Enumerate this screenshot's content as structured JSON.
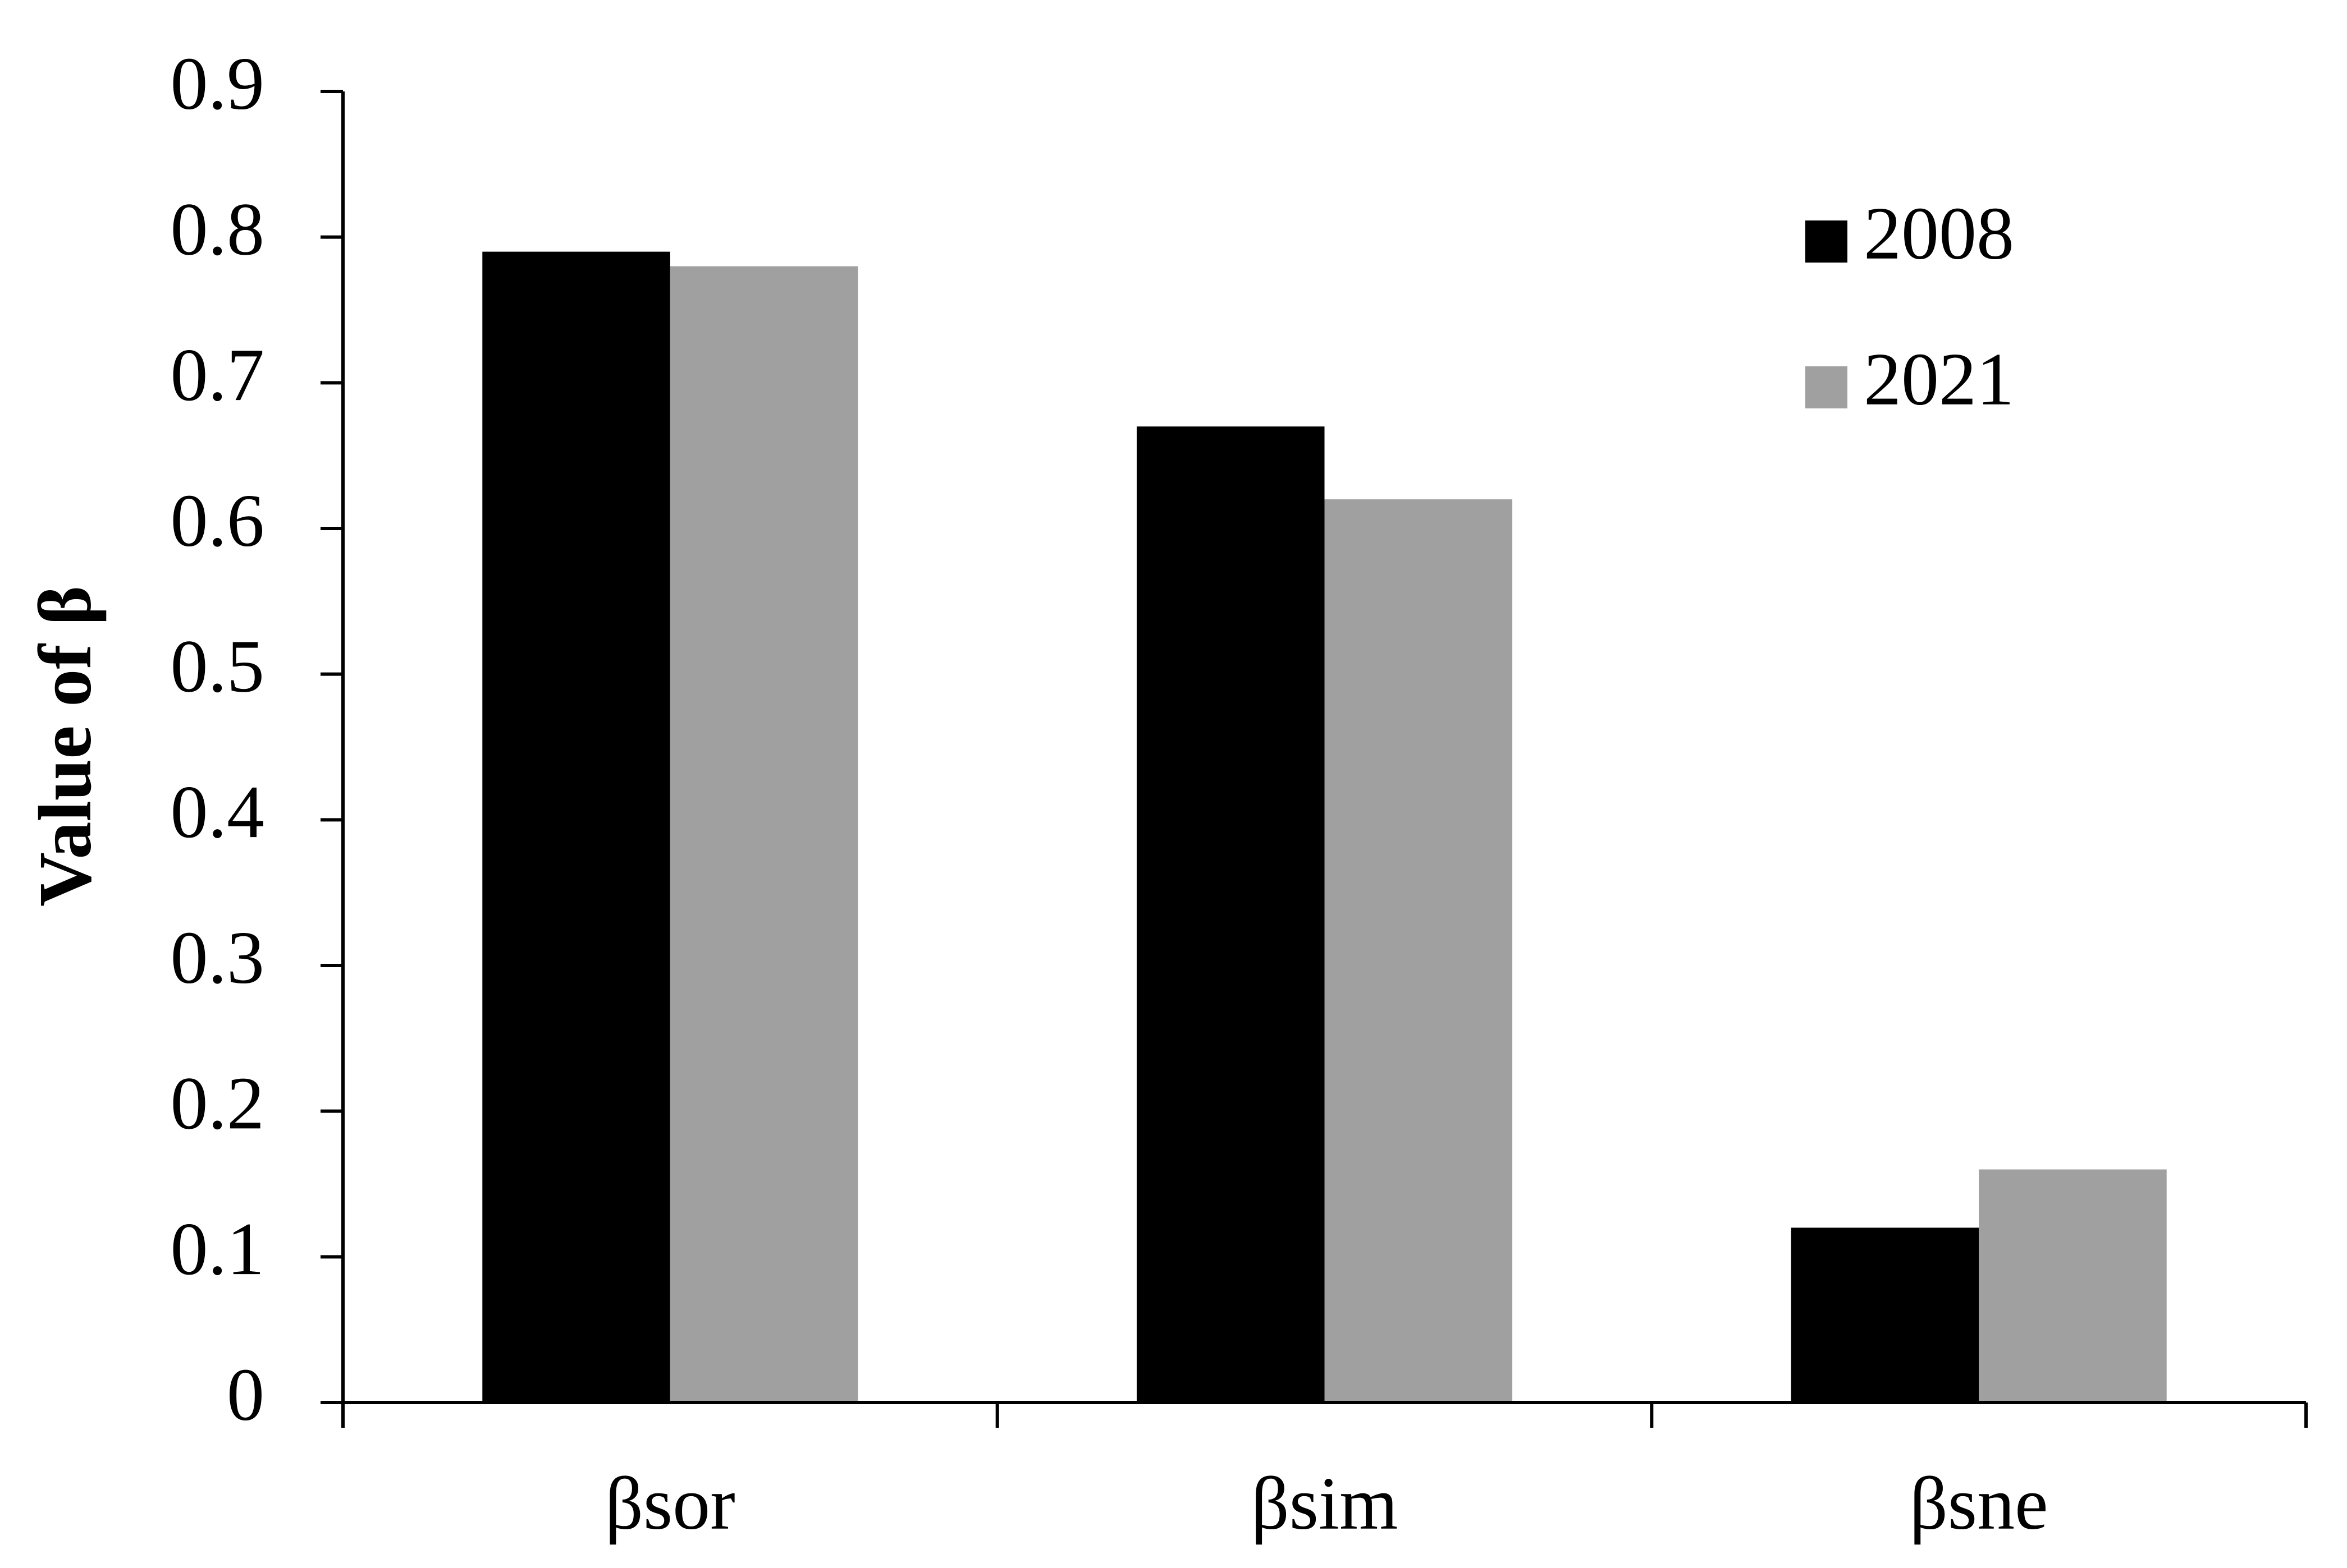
{
  "chart_data": {
    "type": "bar",
    "y_label": "Value of β",
    "categories": [
      "βsor",
      "βsim",
      "βsne"
    ],
    "series": [
      {
        "name": "2008",
        "color": "#000000",
        "values": [
          0.79,
          0.67,
          0.12
        ]
      },
      {
        "name": "2021",
        "color": "#a0a0a0",
        "values": [
          0.78,
          0.62,
          0.16
        ]
      }
    ],
    "ylim": [
      0,
      0.9
    ],
    "yticks": [
      0,
      0.1,
      0.2,
      0.3,
      0.4,
      0.5,
      0.6,
      0.7,
      0.8,
      0.9
    ],
    "legend": "upper-right",
    "grid": false
  }
}
